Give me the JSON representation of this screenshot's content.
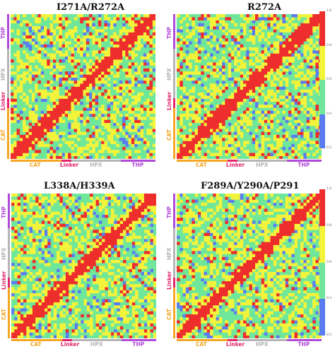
{
  "colors": {
    "blue": "#5b7cf0",
    "green": "#6fe79a",
    "yellow": "#f3f33a",
    "red": "#ee2d2d",
    "CAT": "#f5a623",
    "Linker": "#e2246b",
    "HPX": "#b5b5b5",
    "THP": "#b04ad8"
  },
  "domains": [
    {
      "key": "CAT",
      "label": "CAT"
    },
    {
      "key": "Linker",
      "label": "Linker"
    },
    {
      "key": "HPX",
      "label": "HPX"
    },
    {
      "key": "THP",
      "label": "THP"
    }
  ],
  "colorbars": [
    {
      "ticks": [
        "1.0",
        "0.8",
        "0.6",
        "0.4",
        "0.2"
      ]
    },
    {
      "ticks": [
        "1.0",
        "0.8",
        "0.6",
        "0.4",
        "0.2"
      ]
    }
  ],
  "chart_data": [
    {
      "type": "heatmap",
      "title": "I271A/R272A",
      "domains": [
        "CAT",
        "Linker",
        "HPX",
        "THP"
      ],
      "color_scale": [
        "blue",
        "green",
        "yellow",
        "red"
      ]
    },
    {
      "type": "heatmap",
      "title": "R272A",
      "domains": [
        "CAT",
        "Linker",
        "HPX",
        "THP"
      ],
      "color_scale": [
        "blue",
        "green",
        "yellow",
        "red"
      ]
    },
    {
      "type": "heatmap",
      "title": "L338A/H339A",
      "domains": [
        "CAT",
        "Linker",
        "HPX",
        "THP"
      ],
      "color_scale": [
        "blue",
        "green",
        "yellow",
        "red"
      ]
    },
    {
      "type": "heatmap",
      "title": "F289A/Y290A/P291",
      "domains": [
        "CAT",
        "Linker",
        "HPX",
        "THP"
      ],
      "color_scale": [
        "blue",
        "green",
        "yellow",
        "red"
      ]
    }
  ]
}
